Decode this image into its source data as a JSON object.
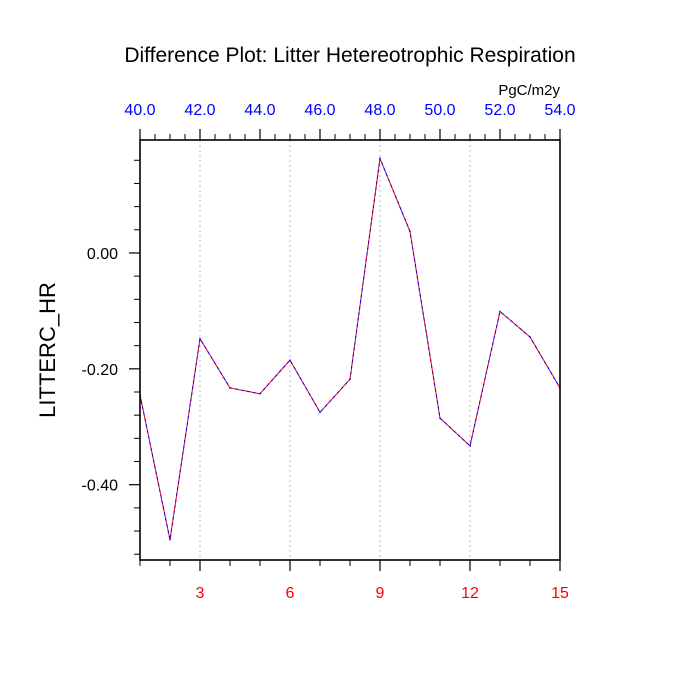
{
  "chart_data": {
    "type": "line",
    "title": "Difference Plot: Litter Hetereotrophic Respiration",
    "ylabel": "LITTERC_HR",
    "top_axis_units": "PgC/m2y",
    "x": [
      1,
      2,
      3,
      4,
      5,
      6,
      7,
      8,
      9,
      10,
      11,
      12,
      13,
      14,
      15
    ],
    "xlim": [
      1,
      15
    ],
    "ylim": [
      -0.53,
      0.195
    ],
    "x_ticks": [
      3,
      6,
      9,
      12,
      15
    ],
    "x_tick_labels": [
      "3",
      "6",
      "9",
      "12",
      "15"
    ],
    "top_ticks": [
      40,
      42,
      44,
      46,
      48,
      50,
      52,
      54
    ],
    "top_tick_labels": [
      "40.0",
      "42.0",
      "44.0",
      "46.0",
      "48.0",
      "50.0",
      "52.0",
      "54.0"
    ],
    "top_lim": [
      40,
      54
    ],
    "y_ticks": [
      0.0,
      -0.2,
      -0.4
    ],
    "y_tick_labels": [
      "0.00",
      "-0.20",
      "-0.40"
    ],
    "grid": "vertical dotted at major x ticks",
    "series": [
      {
        "values": [
          -0.245,
          -0.495,
          -0.148,
          -0.233,
          -0.243,
          -0.185,
          -0.275,
          -0.218,
          0.163,
          0.037,
          -0.285,
          -0.333,
          -0.101,
          -0.145,
          -0.233
        ],
        "color_primary": "#0000ff",
        "color_secondary": "#ff0000"
      }
    ],
    "colors": {
      "bottom_tick_labels": "#ff0000",
      "top_tick_labels": "#0000ff",
      "axis": "#000000",
      "grid": "#bbbbbb"
    }
  }
}
